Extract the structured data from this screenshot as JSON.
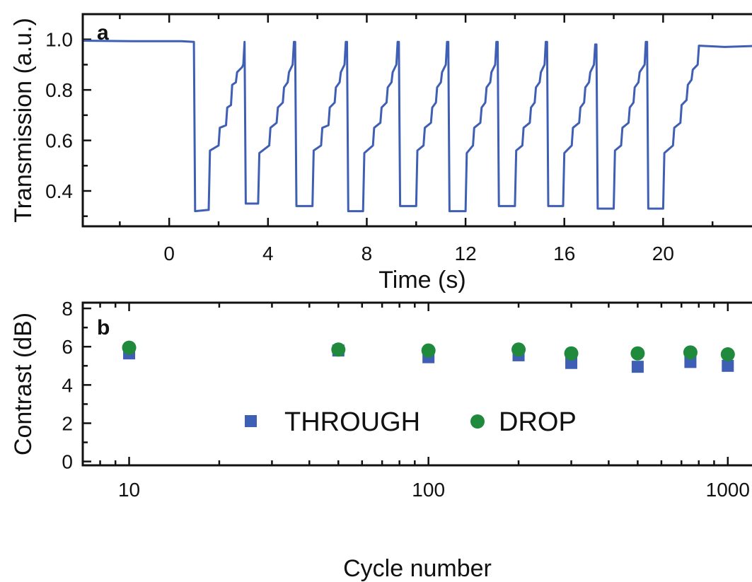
{
  "colors": {
    "trace": "#3f5fb4",
    "through": "#3f5fb4",
    "drop": "#1f8a3c",
    "axis": "#111111"
  },
  "chart_data": [
    {
      "panel_label": "a",
      "type": "line",
      "xlabel": "Time (s)",
      "ylabel": "Transmission (a.u.)",
      "xlim": [
        -3.5,
        24
      ],
      "ylim": [
        0.26,
        1.1
      ],
      "xticks": [
        0,
        4,
        8,
        12,
        16,
        20
      ],
      "yticks": [
        0.4,
        0.6,
        0.8,
        1.0
      ],
      "ytick_labels": [
        "0.4",
        "0.6",
        "0.8",
        "1.0"
      ],
      "grid": false,
      "series": [
        {
          "x": [
            -3.5,
            -1.5,
            0.5,
            1.0,
            1.05,
            1.6,
            1.65,
            2.0,
            2.05,
            2.3,
            2.35,
            2.5,
            2.55,
            2.7,
            2.75,
            2.95,
            3.0,
            3.05,
            3.1,
            3.6,
            3.65,
            4.05,
            4.1,
            4.35,
            4.4,
            4.6,
            4.65,
            4.8,
            4.85,
            5.0,
            5.05,
            5.1,
            5.15,
            5.8,
            5.85,
            6.15,
            6.2,
            6.45,
            6.5,
            6.7,
            6.75,
            6.9,
            6.95,
            7.1,
            7.15,
            7.2,
            7.25,
            7.85,
            7.9,
            8.25,
            8.3,
            8.55,
            8.6,
            8.8,
            8.85,
            9.0,
            9.05,
            9.2,
            9.25,
            9.3,
            9.35,
            10.0,
            10.05,
            10.3,
            10.35,
            10.6,
            10.65,
            10.8,
            10.85,
            11.0,
            11.05,
            11.2,
            11.25,
            11.3,
            11.35,
            12.0,
            12.05,
            12.3,
            12.35,
            12.6,
            12.65,
            12.8,
            12.85,
            13.0,
            13.05,
            13.2,
            13.25,
            13.3,
            13.35,
            14.0,
            14.05,
            14.3,
            14.35,
            14.6,
            14.65,
            14.8,
            14.85,
            15.0,
            15.05,
            15.2,
            15.25,
            15.3,
            15.35,
            15.95,
            16.0,
            16.3,
            16.35,
            16.6,
            16.65,
            16.8,
            16.85,
            17.0,
            17.05,
            17.2,
            17.25,
            17.3,
            17.35,
            18.0,
            18.05,
            18.3,
            18.35,
            18.6,
            18.65,
            18.8,
            18.85,
            19.0,
            19.05,
            19.25,
            19.3,
            19.35,
            19.4,
            20.0,
            20.05,
            20.4,
            20.45,
            20.7,
            20.75,
            20.95,
            21.0,
            21.15,
            21.2,
            21.4,
            21.45,
            22.5,
            24.0
          ],
          "y": [
            0.995,
            0.993,
            0.993,
            0.99,
            0.32,
            0.325,
            0.56,
            0.58,
            0.65,
            0.66,
            0.73,
            0.74,
            0.82,
            0.83,
            0.87,
            0.89,
            0.9,
            0.99,
            0.35,
            0.35,
            0.55,
            0.58,
            0.65,
            0.67,
            0.73,
            0.75,
            0.81,
            0.83,
            0.87,
            0.9,
            0.99,
            0.99,
            0.34,
            0.34,
            0.56,
            0.58,
            0.65,
            0.66,
            0.73,
            0.75,
            0.81,
            0.83,
            0.87,
            0.9,
            0.99,
            0.99,
            0.32,
            0.32,
            0.55,
            0.58,
            0.65,
            0.67,
            0.73,
            0.75,
            0.81,
            0.83,
            0.87,
            0.9,
            0.99,
            0.99,
            0.34,
            0.34,
            0.56,
            0.58,
            0.65,
            0.67,
            0.73,
            0.75,
            0.81,
            0.83,
            0.87,
            0.9,
            0.99,
            0.99,
            0.32,
            0.32,
            0.55,
            0.58,
            0.65,
            0.67,
            0.73,
            0.75,
            0.81,
            0.83,
            0.87,
            0.9,
            0.99,
            0.99,
            0.34,
            0.34,
            0.56,
            0.58,
            0.65,
            0.67,
            0.73,
            0.75,
            0.81,
            0.83,
            0.87,
            0.9,
            0.99,
            0.99,
            0.34,
            0.34,
            0.55,
            0.58,
            0.65,
            0.67,
            0.73,
            0.75,
            0.81,
            0.83,
            0.87,
            0.9,
            0.98,
            0.98,
            0.33,
            0.33,
            0.56,
            0.58,
            0.65,
            0.67,
            0.73,
            0.75,
            0.81,
            0.83,
            0.87,
            0.9,
            0.99,
            0.99,
            0.33,
            0.33,
            0.55,
            0.58,
            0.65,
            0.67,
            0.74,
            0.76,
            0.82,
            0.84,
            0.88,
            0.9,
            0.975,
            0.97,
            0.975
          ]
        }
      ]
    },
    {
      "panel_label": "b",
      "type": "scatter",
      "xlabel": "Cycle number",
      "ylabel": "Contrast (dB)",
      "xscale": "log",
      "xlim": [
        7,
        1300
      ],
      "ylim": [
        -0.2,
        8.3
      ],
      "xticks": [
        10,
        100,
        1000
      ],
      "xtick_labels": [
        "10",
        "100",
        "1000"
      ],
      "yticks": [
        0,
        2,
        4,
        6,
        8
      ],
      "ytick_labels": [
        "0",
        "2",
        "4",
        "6",
        "8"
      ],
      "grid": false,
      "legend_position": "bottom-center",
      "series": [
        {
          "name": "THROUGH",
          "marker": "square",
          "x": [
            10,
            50,
            100,
            200,
            300,
            500,
            750,
            1000
          ],
          "y": [
            5.65,
            5.8,
            5.45,
            5.55,
            5.15,
            4.95,
            5.2,
            5.0
          ]
        },
        {
          "name": "DROP",
          "marker": "circle",
          "x": [
            10,
            50,
            100,
            200,
            300,
            500,
            750,
            1000
          ],
          "y": [
            5.95,
            5.85,
            5.8,
            5.85,
            5.65,
            5.65,
            5.7,
            5.6
          ]
        }
      ]
    }
  ]
}
